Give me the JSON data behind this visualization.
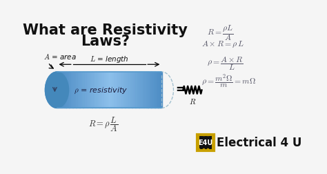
{
  "bg_color": "#1a1a2e",
  "title_line1": "What are Resistivity",
  "title_line2": "Laws?",
  "title_color": "#000000",
  "title_fontsize": 15,
  "eq1": "$R = \\dfrac{\\rho L}{A}$",
  "eq2": "$A \\times R = \\rho\\, L$",
  "eq3": "$\\rho = \\dfrac{A \\times R}{L}$",
  "eq4": "$\\rho = \\dfrac{m^2\\Omega}{m} = m\\Omega$",
  "label_A": "$A$ = area",
  "label_L": "$L$ = length",
  "label_rho": "$\\rho$ = resistivity",
  "label_R_bottom": "$R = \\rho\\,\\dfrac{L}{A}$",
  "label_R": "$R$",
  "e4u_text": "Electrical 4 U",
  "eq_color": "#555566"
}
